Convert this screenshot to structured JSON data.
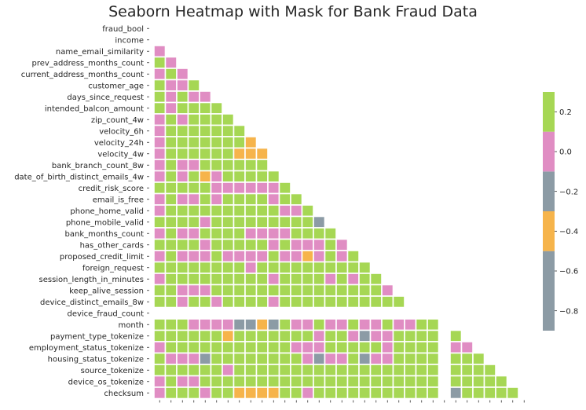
{
  "chart_data": {
    "type": "heatmap",
    "title": "Seaborn Heatmap with Mask for Bank Fraud Data",
    "mask": "upper-triangle",
    "labels": [
      "fraud_bool",
      "income",
      "name_email_similarity",
      "prev_address_months_count",
      "current_address_months_count",
      "customer_age",
      "days_since_request",
      "intended_balcon_amount",
      "zip_count_4w",
      "velocity_6h",
      "velocity_24h",
      "velocity_4w",
      "bank_branch_count_8w",
      "date_of_birth_distinct_emails_4w",
      "credit_risk_score",
      "email_is_free",
      "phone_home_valid",
      "phone_mobile_valid",
      "bank_months_count",
      "has_other_cards",
      "proposed_credit_limit",
      "foreign_request",
      "session_length_in_minutes",
      "keep_alive_session",
      "device_distinct_emails_8w",
      "device_fraud_count",
      "month",
      "payment_type_tokenize",
      "employment_status_tokenize",
      "housing_status_tokenize",
      "source_tokenize",
      "device_os_tokenize",
      "checksum"
    ],
    "colorbar": {
      "ticks": [
        0.2,
        0.0,
        -0.2,
        -0.4,
        -0.6,
        -0.8
      ],
      "tick_labels": [
        "0.2",
        "0.0",
        "−0.2",
        "−0.4",
        "−0.6",
        "−0.8"
      ],
      "range": [
        -0.9,
        0.3
      ],
      "bands": [
        {
          "from": -0.9,
          "to": -0.5,
          "color": "#8c9ba5"
        },
        {
          "from": -0.5,
          "to": -0.3,
          "color": "#f6b44b"
        },
        {
          "from": -0.3,
          "to": -0.1,
          "color": "#8c9ba5"
        },
        {
          "from": -0.1,
          "to": 0.1,
          "color": "#e08dc3"
        },
        {
          "from": 0.1,
          "to": 0.3,
          "color": "#a6d754"
        },
        {
          "from": 0.3,
          "to": 0.35,
          "color": "#f6b44b"
        }
      ]
    },
    "color_key": {
      "P": "#e08dc3",
      "G": "#a6d754",
      "O": "#f6b44b",
      "S": "#8c9ba5",
      "_": "none"
    },
    "rows": [
      "",
      "",
      "P",
      "GP",
      "PGP",
      "GPPG",
      "GPGPP",
      "GPGGGG",
      "PGPGGGG",
      "PGGGGGGG",
      "PGGGGGGGO",
      "PGGGGGGOOO",
      "PGPPGGGGGG",
      "PGPGOPGGGGG",
      "GGGGGPPPPPPG",
      "PGPPGPGGGGPGG",
      "PGGGGGGGGGGPPG",
      "GGGGPGGGGGGGGGS",
      "PGPPGGGGPPPPGGGG",
      "GGGGPGGGGGPGPPPGP",
      "PGPPPGPPPPGPPOPGPG",
      "GGGGGGGGPGGGGGGGGGG",
      "PGGGGGGGGGPGGGGPGPGG",
      "GGPPPGGGGGGGGGGGGGGGP",
      "GGPGGPGGGGPGGGGGGGGGGG",
      "",
      "GGGPPPPSSOSGPPGPPGPPGPPGG_",
      "GGGGGGOGGGGGGGPGGPSPPGGGG_G",
      "PGGGGGGGGGGGPPPGGGGGPGGGG_PP",
      "GPPPSGGGGGGGGPSPPGSPPGGGG_GGG",
      "GGGGGGPGGGGGGGGGGGGGGGGGG_GGGG",
      "PGPPGGGGGGGGGGGGGGGGGGGGG_GGGGG",
      "PGGGPGGOOOOGGPGGGGGGGGGGG_SGGGGG"
    ]
  }
}
